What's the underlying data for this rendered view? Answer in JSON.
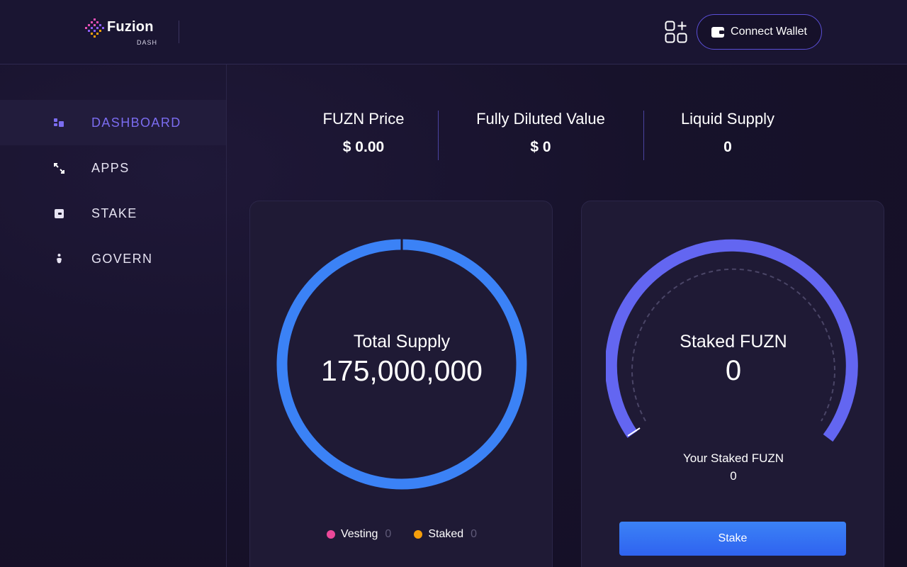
{
  "header": {
    "logo_text": "Fuzion",
    "logo_sub": "DASH",
    "apps_icon": "apps-grid-icon",
    "connect_label": "Connect Wallet",
    "accent": "#5b4fd6"
  },
  "sidebar": {
    "items": [
      {
        "label": "DASHBOARD",
        "icon": "dashboard-icon",
        "active": true
      },
      {
        "label": "APPS",
        "icon": "arrows-icon",
        "active": false
      },
      {
        "label": "STAKE",
        "icon": "wallet-icon",
        "active": false
      },
      {
        "label": "GOVERN",
        "icon": "person-icon",
        "active": false
      }
    ],
    "active_color": "#7b6cf0"
  },
  "stats": [
    {
      "title": "FUZN Price",
      "value": "$ 0.00"
    },
    {
      "title": "Fully Diluted Value",
      "value": "$ 0"
    },
    {
      "title": "Liquid Supply",
      "value": "0"
    }
  ],
  "supply_card": {
    "title": "Total Supply",
    "value": "175,000,000",
    "ring_color": "#3b82f6",
    "legend": [
      {
        "label": "Vesting",
        "value": "0",
        "color": "#ec4899"
      },
      {
        "label": "Staked",
        "value": "0",
        "color": "#f59e0b"
      }
    ]
  },
  "staked_card": {
    "title": "Staked FUZN",
    "value": "0",
    "your_label": "Your Staked FUZN",
    "your_value": "0",
    "button_label": "Stake",
    "gauge_color": "#6366f1"
  }
}
